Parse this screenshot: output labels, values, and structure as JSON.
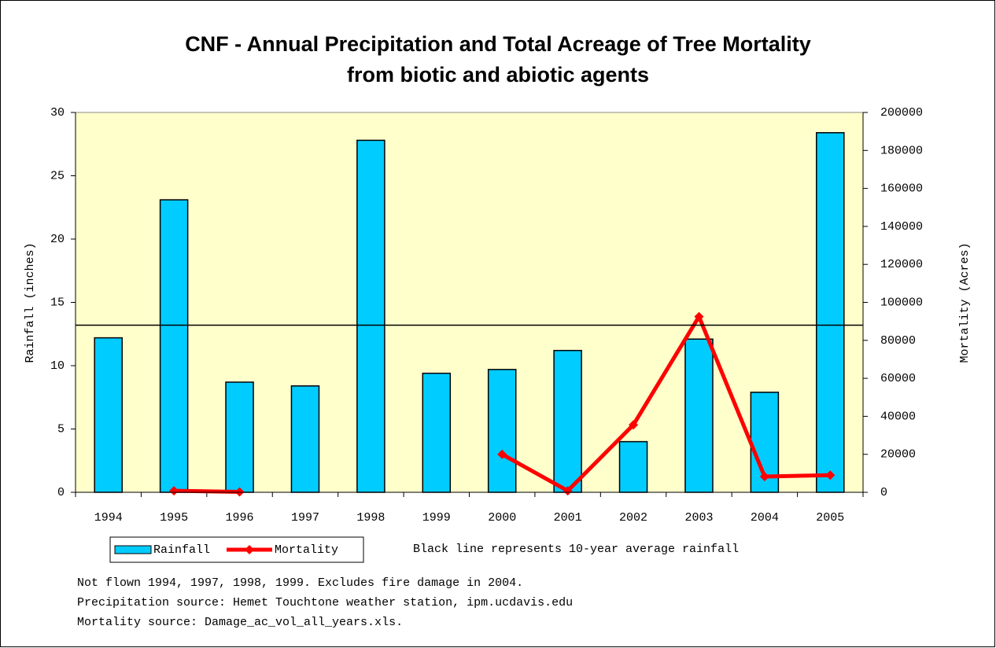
{
  "chart_data": {
    "type": "bar_line",
    "title": [
      "CNF - Annual Precipitation and Total Acreage of Tree Mortality",
      "from biotic and abiotic agents"
    ],
    "categories": [
      "1994",
      "1995",
      "1996",
      "1997",
      "1998",
      "1999",
      "2000",
      "2001",
      "2002",
      "2003",
      "2004",
      "2005"
    ],
    "series": [
      {
        "name": "Rainfall",
        "type": "bar",
        "color": "#00ccff",
        "values": [
          12.2,
          23.1,
          8.7,
          8.4,
          27.8,
          9.4,
          9.7,
          11.2,
          4.0,
          12.1,
          7.9,
          28.4
        ]
      },
      {
        "name": "Mortality",
        "type": "line",
        "axis": "y2",
        "color": "#ff0000",
        "values": [
          null,
          800,
          200,
          null,
          null,
          null,
          20000,
          800,
          35500,
          92500,
          8300,
          9000
        ]
      }
    ],
    "reference_line": 13.2,
    "reference_color": "#000000",
    "ylabel": "Rainfall (inches)",
    "y2label": "Mortality (Acres)",
    "ylim": [
      0,
      30
    ],
    "yticks": [
      0,
      5,
      10,
      15,
      20,
      25,
      30
    ],
    "y2lim": [
      0,
      200000
    ],
    "y2ticks": [
      0,
      20000,
      40000,
      60000,
      80000,
      100000,
      120000,
      140000,
      160000,
      180000,
      200000
    ],
    "plot_background": "#ffffcc",
    "annotation": "Black line represents 10-year average rainfall",
    "notes": [
      "Not flown 1994, 1997, 1998, 1999.  Excludes fire damage in 2004.",
      "Precipitation source: Hemet Touchtone weather station, ipm.ucdavis.edu",
      "Mortality source: Damage_ac_vol_all_years.xls."
    ]
  }
}
